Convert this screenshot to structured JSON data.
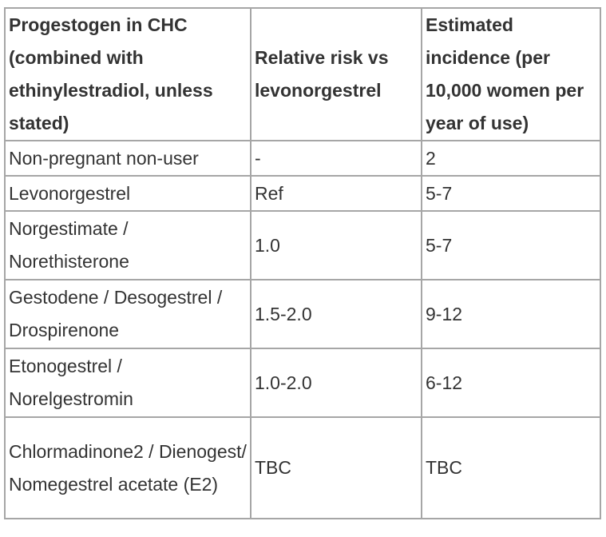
{
  "table": {
    "header": [
      "Progestogen in CHC (combined with ethinylestradiol, unless stated)",
      "Relative risk vs levonorgestrel",
      "Estimated incidence (per 10,000 women per year of use)"
    ],
    "rows": [
      [
        "Non-pregnant non-user",
        "-",
        "2"
      ],
      [
        "Levonorgestrel",
        "Ref",
        "5-7"
      ],
      [
        "Norgestimate / Norethisterone",
        "1.0",
        "5-7"
      ],
      [
        "Gestodene / Desogestrel / Drospirenone",
        "1.5-2.0",
        "9-12"
      ],
      [
        "Etonogestrel / Norelgestromin",
        "1.0-2.0",
        "6-12"
      ],
      [
        "Chlormadinone2 / Dienogest/ Nomegestrel acetate (E2)",
        "TBC",
        "TBC"
      ]
    ]
  }
}
